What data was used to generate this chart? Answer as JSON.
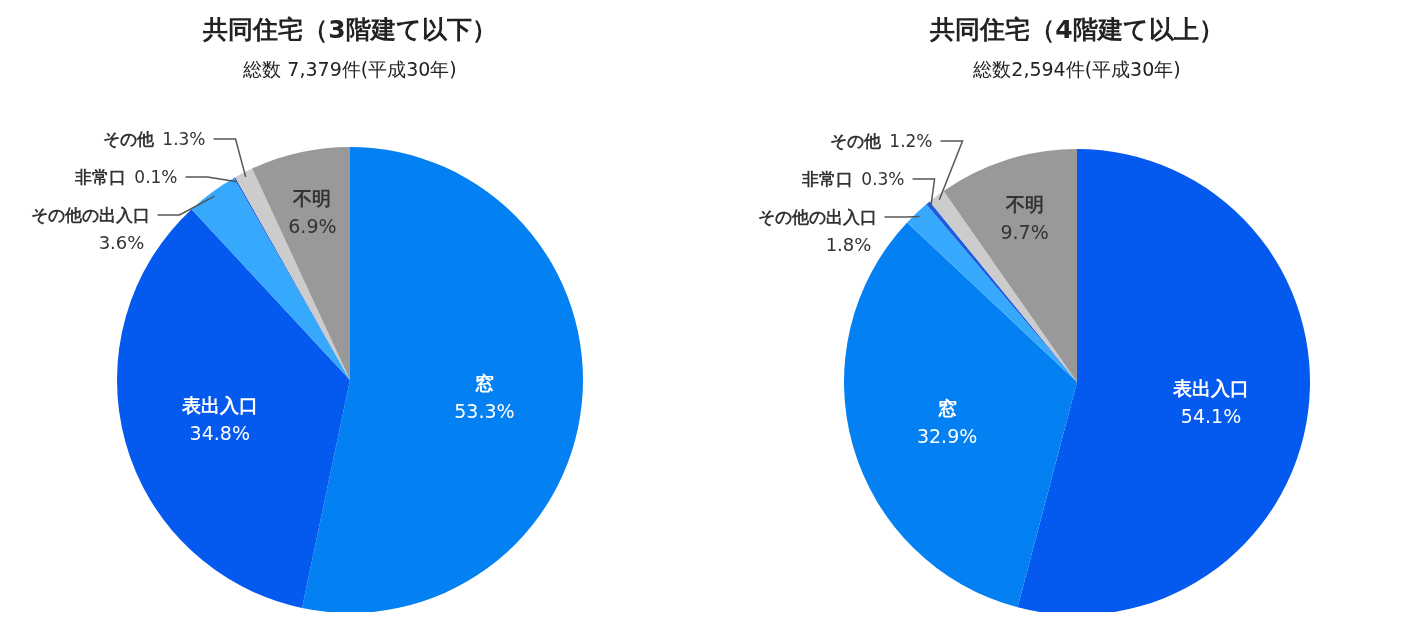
{
  "chart_data": [
    {
      "type": "pie",
      "title": "共同住宅（3階建て以下）",
      "subtitle": "総数 7,379件(平成30年)",
      "categories": [
        "窓",
        "表出入口",
        "その他の出入口",
        "非常口",
        "その他",
        "不明"
      ],
      "values": [
        53.3,
        34.8,
        3.6,
        0.1,
        1.3,
        6.9
      ],
      "value_labels": [
        "53.3%",
        "34.8%",
        "3.6%",
        "0.1%",
        "1.3%",
        "6.9%"
      ],
      "colors": [
        "#0380f2",
        "#0459ee",
        "#36a9fc",
        "#1d5ce0",
        "#cccccc",
        "#999999"
      ]
    },
    {
      "type": "pie",
      "title": "共同住宅（4階建て以上）",
      "subtitle": "総数2,594件(平成30年)",
      "categories": [
        "表出入口",
        "窓",
        "その他の出入口",
        "非常口",
        "その他",
        "不明"
      ],
      "values": [
        54.1,
        32.9,
        1.8,
        0.3,
        1.2,
        9.7
      ],
      "value_labels": [
        "54.1%",
        "32.9%",
        "1.8%",
        "0.3%",
        "1.2%",
        "9.7%"
      ],
      "colors": [
        "#0459ee",
        "#0380f2",
        "#36a9fc",
        "#1d5ce0",
        "#cccccc",
        "#999999"
      ]
    }
  ]
}
